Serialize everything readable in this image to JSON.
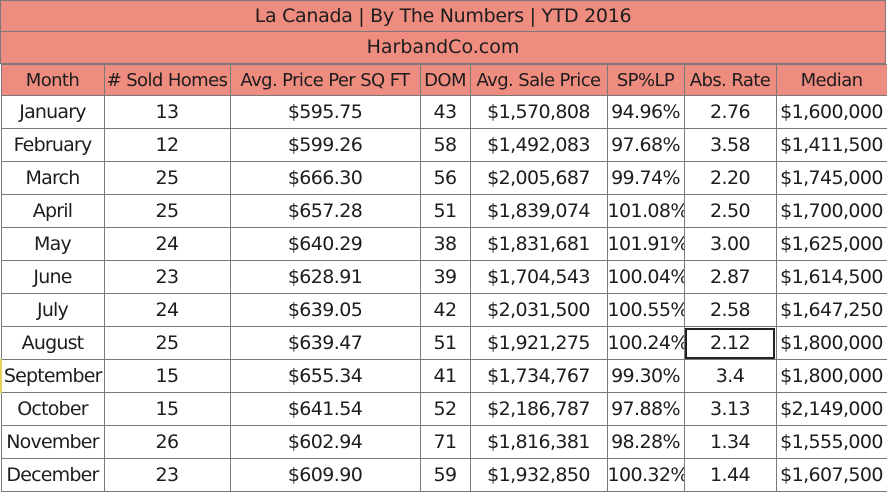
{
  "title": "La Canada |  By The Numbers  |  YTD 2016",
  "site": "HarbandCo.com",
  "headers": [
    "Month",
    "# Sold Homes",
    "Avg. Price Per SQ FT",
    "DOM",
    "Avg. Sale Price",
    "SP%LP",
    "Abs. Rate",
    "Median"
  ],
  "rows": [
    [
      "January",
      "13",
      "$595.75",
      "43",
      "$1,570,808",
      "94.96%",
      "2.76",
      "$1,600,000"
    ],
    [
      "February",
      "12",
      "$599.26",
      "58",
      "$1,492,083",
      "97.68%",
      "3.58",
      "$1,411,500"
    ],
    [
      "March",
      "25",
      "$666.30",
      "56",
      "$2,005,687",
      "99.74%",
      "2.20",
      "$1,745,000"
    ],
    [
      "April",
      "25",
      "$657.28",
      "51",
      "$1,839,074",
      "101.08%",
      "2.50",
      "$1,700,000"
    ],
    [
      "May",
      "24",
      "$640.29",
      "38",
      "$1,831,681",
      "101.91%",
      "3.00",
      "$1,625,000"
    ],
    [
      "June",
      "23",
      "$628.91",
      "39",
      "$1,704,543",
      "100.04%",
      "2.87",
      "$1,614,500"
    ],
    [
      "July",
      "24",
      "$639.05",
      "42",
      "$2,031,500",
      "100.55%",
      "2.58",
      "$1,647,250"
    ],
    [
      "August",
      "25",
      "$639.47",
      "51",
      "$1,921,275",
      "100.24%",
      "2.12",
      "$1,800,000"
    ],
    [
      "September",
      "15",
      "$655.34",
      "41",
      "$1,734,767",
      "99.30%",
      "3.4",
      "$1,800,000"
    ],
    [
      "October",
      "15",
      "$641.54",
      "52",
      "$2,186,787",
      "97.88%",
      "3.13",
      "$2,149,000"
    ],
    [
      "November",
      "26",
      "$602.94",
      "71",
      "$1,816,381",
      "98.28%",
      "1.34",
      "$1,555,000"
    ],
    [
      "December",
      "23",
      "$609.90",
      "59",
      "$1,932,850",
      "100.32%",
      "1.44",
      "$1,607,500"
    ]
  ]
}
